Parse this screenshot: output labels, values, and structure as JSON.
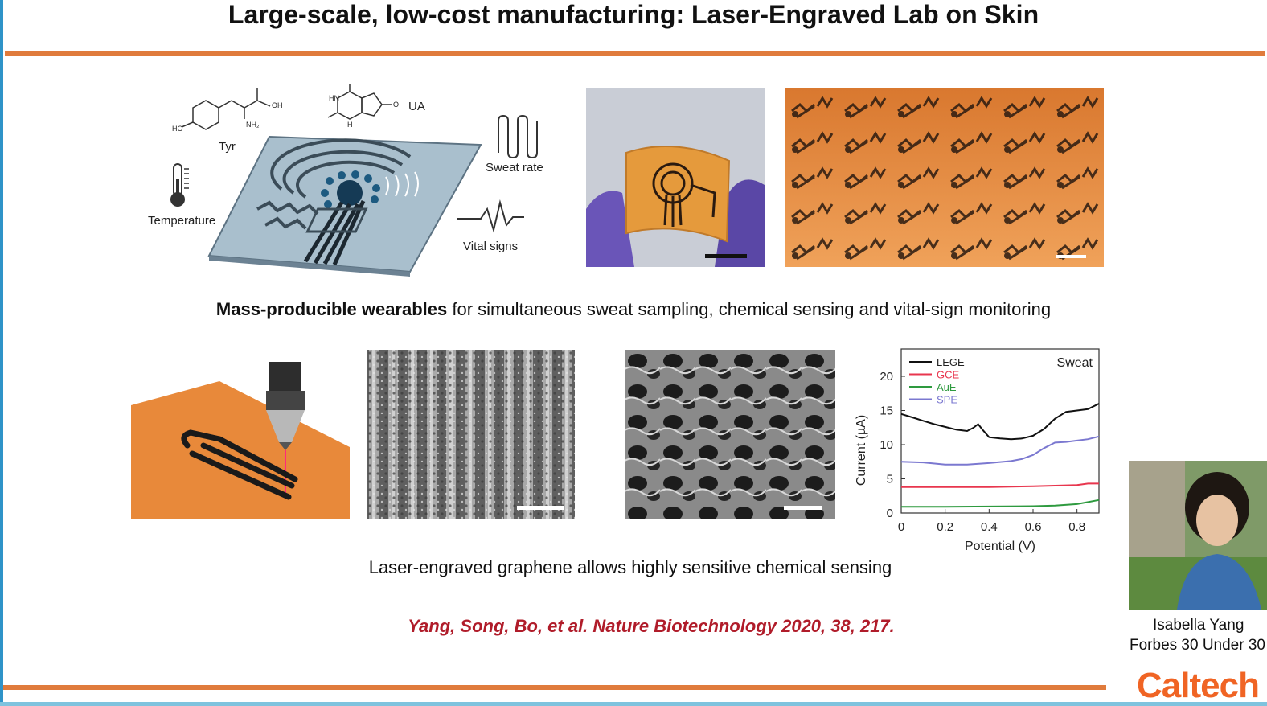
{
  "slide": {
    "title": "Large-scale, low-cost manufacturing: Laser-Engraved Lab on Skin",
    "caption1_bold": "Mass-producible wearables",
    "caption1_rest": " for simultaneous sweat sampling, chemical sensing and vital-sign monitoring",
    "caption2": "Laser-engraved graphene allows highly sensitive chemical sensing",
    "citation": "Yang, Song, Bo, et al. Nature Biotechnology 2020, 38, 217.",
    "logo": "Caltech"
  },
  "diagram": {
    "labels": {
      "tyr": "Tyr",
      "ua": "UA",
      "sweat_rate": "Sweat rate",
      "temperature": "Temperature",
      "vital_signs": "Vital signs"
    },
    "chem": {
      "ho": "HO",
      "oh": "OH",
      "nh2": "NH₂",
      "hn": "HN",
      "h": "H",
      "o": "O"
    }
  },
  "person": {
    "name": "Isabella Yang",
    "honor": "Forbes 30 Under 30"
  },
  "chart_data": {
    "type": "line",
    "annotation": "Sweat",
    "xlabel": "Potential (V)",
    "ylabel": "Current (µA)",
    "xlim": [
      0,
      0.9
    ],
    "ylim": [
      0,
      24
    ],
    "xticks": [
      "0",
      "0.2",
      "0.4",
      "0.6",
      "0.8"
    ],
    "yticks": [
      "0",
      "5",
      "10",
      "15",
      "20"
    ],
    "legend_position": "top-left",
    "series": [
      {
        "name": "LEGE",
        "color": "#111111",
        "x": [
          0,
          0.05,
          0.1,
          0.15,
          0.2,
          0.25,
          0.3,
          0.33,
          0.35,
          0.37,
          0.4,
          0.45,
          0.5,
          0.55,
          0.6,
          0.65,
          0.7,
          0.75,
          0.8,
          0.85,
          0.9
        ],
        "y": [
          14.5,
          14.0,
          13.5,
          13.0,
          12.6,
          12.2,
          12.0,
          12.5,
          13.0,
          12.2,
          11.1,
          10.9,
          10.8,
          10.9,
          11.3,
          12.3,
          13.8,
          14.8,
          15.0,
          15.2,
          16.0
        ]
      },
      {
        "name": "GCE",
        "color": "#e8364e",
        "x": [
          0,
          0.2,
          0.4,
          0.6,
          0.7,
          0.8,
          0.85,
          0.9
        ],
        "y": [
          3.8,
          3.8,
          3.8,
          3.9,
          4.0,
          4.1,
          4.3,
          4.3
        ]
      },
      {
        "name": "AuE",
        "color": "#2e9a3f",
        "x": [
          0,
          0.2,
          0.4,
          0.6,
          0.7,
          0.8,
          0.85,
          0.9
        ],
        "y": [
          0.9,
          0.9,
          0.95,
          1.0,
          1.1,
          1.3,
          1.6,
          1.9
        ]
      },
      {
        "name": "SPE",
        "color": "#7b78d0",
        "x": [
          0,
          0.1,
          0.2,
          0.3,
          0.4,
          0.5,
          0.55,
          0.6,
          0.65,
          0.7,
          0.75,
          0.8,
          0.85,
          0.9
        ],
        "y": [
          7.5,
          7.4,
          7.1,
          7.1,
          7.3,
          7.6,
          7.9,
          8.5,
          9.5,
          10.3,
          10.4,
          10.6,
          10.8,
          11.2
        ]
      }
    ]
  },
  "colors": {
    "accent_rule": "#e07b3c",
    "citation": "#b01c2a",
    "logo": "#f06424",
    "device_substrate": "#9fb7c6",
    "orange_substrate": "#e8893a"
  }
}
